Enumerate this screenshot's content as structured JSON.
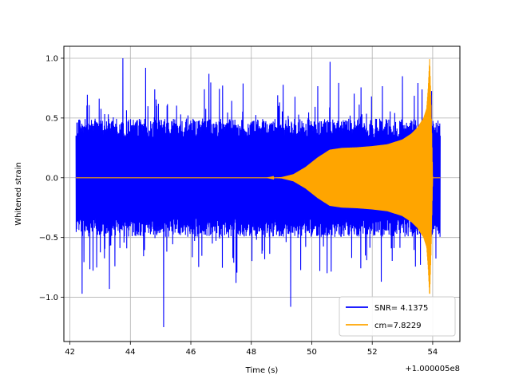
{
  "chart_data": {
    "type": "line",
    "title": "",
    "xlabel": "Time (s)",
    "ylabel": "Whitened strain",
    "x_offset_label": "+1.000005e8",
    "xlim": [
      41.8,
      54.9
    ],
    "ylim": [
      -1.37,
      1.1
    ],
    "x_ticks": [
      42,
      44,
      46,
      48,
      50,
      52,
      54
    ],
    "x_tick_labels": [
      "42",
      "44",
      "46",
      "48",
      "50",
      "52",
      "54"
    ],
    "y_ticks": [
      1.0,
      0.5,
      0.0,
      -0.5,
      -1.0
    ],
    "y_tick_labels": [
      "1.0",
      "0.5",
      "0.0",
      "−0.5",
      "−1.0"
    ],
    "grid": true,
    "legend_position": "lower-right",
    "series": [
      {
        "name": "SNR= 4.1375",
        "color": "#0000ff",
        "style": "noise band",
        "x_range": [
          42.2,
          54.25
        ],
        "typical_amplitude": 0.45,
        "peaks": [
          {
            "x": 43.75,
            "y": 1.0
          },
          {
            "x": 44.5,
            "y": 0.92
          },
          {
            "x": 46.6,
            "y": 0.87
          },
          {
            "x": 50.6,
            "y": 0.97
          },
          {
            "x": 53.0,
            "y": 0.85
          },
          {
            "x": 42.4,
            "y": -0.97
          },
          {
            "x": 43.3,
            "y": -0.93
          },
          {
            "x": 45.1,
            "y": -1.25
          },
          {
            "x": 49.3,
            "y": -1.08
          },
          {
            "x": 47.5,
            "y": -0.88
          },
          {
            "x": 52.3,
            "y": -0.87
          }
        ]
      },
      {
        "name": "cm=7.8229",
        "color": "#ffa500",
        "style": "chirp envelope",
        "envelope": {
          "x": [
            42.2,
            48.5,
            49.0,
            49.4,
            49.8,
            50.2,
            50.6,
            51.0,
            51.5,
            52.0,
            52.5,
            53.0,
            53.3,
            53.5,
            53.7,
            53.8,
            53.85,
            53.9,
            53.95,
            54.0,
            54.25
          ],
          "y": [
            0.0,
            0.0,
            0.005,
            0.03,
            0.09,
            0.17,
            0.235,
            0.25,
            0.255,
            0.265,
            0.28,
            0.32,
            0.37,
            0.42,
            0.5,
            0.58,
            0.75,
            1.0,
            0.6,
            0.0,
            0.0
          ]
        }
      }
    ]
  }
}
